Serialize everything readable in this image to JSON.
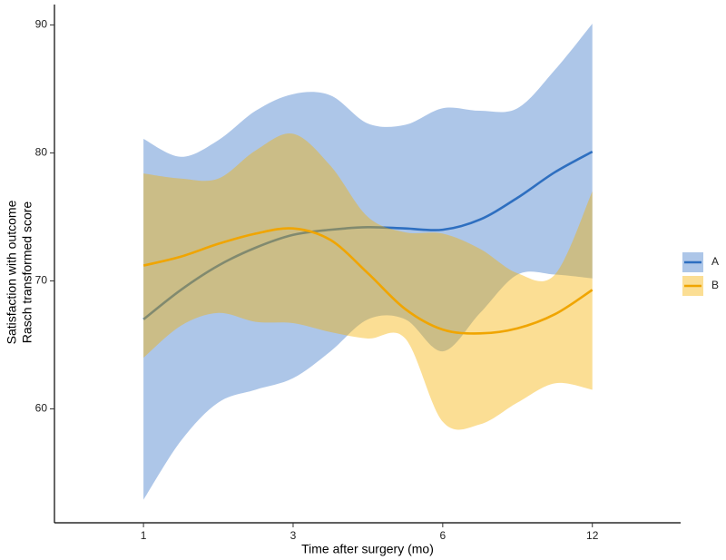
{
  "chart_data": {
    "type": "line",
    "xlabel": "Time after surgery (mo)",
    "ylabel": [
      "Satisfaction with outcome",
      "Rasch transformed score"
    ],
    "x": [
      0,
      0.25,
      0.5,
      0.75,
      1,
      1.25,
      1.5,
      1.75,
      2,
      2.25,
      2.5,
      2.75,
      3
    ],
    "xlim": [
      -0.595,
      3.59
    ],
    "xticks": [
      {
        "value": 0,
        "label": "1"
      },
      {
        "value": 1,
        "label": "3"
      },
      {
        "value": 2,
        "label": "6"
      },
      {
        "value": 3,
        "label": "12"
      }
    ],
    "ylim": [
      51.1,
      91.6
    ],
    "yticks": [
      60,
      70,
      80,
      90
    ],
    "legend": "right",
    "series": [
      {
        "name": "A",
        "color": "#2e6fc0",
        "fill": "#3c78c8",
        "values": [
          67.0,
          69.3,
          71.2,
          72.6,
          73.6,
          74.0,
          74.2,
          74.1,
          74.0,
          74.8,
          76.5,
          78.5,
          80.1
        ],
        "upper": [
          81.1,
          79.7,
          81.0,
          83.3,
          84.6,
          84.5,
          82.3,
          82.2,
          83.5,
          83.3,
          83.5,
          86.5,
          90.1
        ],
        "lower": [
          52.9,
          57.5,
          60.5,
          61.5,
          62.4,
          64.5,
          67.0,
          67.0,
          64.5,
          67.5,
          70.5,
          70.5,
          70.2
        ]
      },
      {
        "name": "B",
        "color": "#f0a500",
        "fill": "#f5b000",
        "values": [
          71.2,
          71.9,
          72.9,
          73.7,
          74.1,
          73.2,
          70.6,
          67.8,
          66.2,
          65.9,
          66.3,
          67.4,
          69.3
        ],
        "upper": [
          78.4,
          78.0,
          78.0,
          80.2,
          81.5,
          79.0,
          75.0,
          73.8,
          73.7,
          72.5,
          70.6,
          70.5,
          77.0
        ],
        "lower": [
          64.0,
          66.5,
          67.5,
          66.8,
          66.7,
          66.0,
          65.5,
          65.5,
          59.0,
          58.8,
          60.5,
          62.0,
          61.5
        ]
      }
    ]
  }
}
